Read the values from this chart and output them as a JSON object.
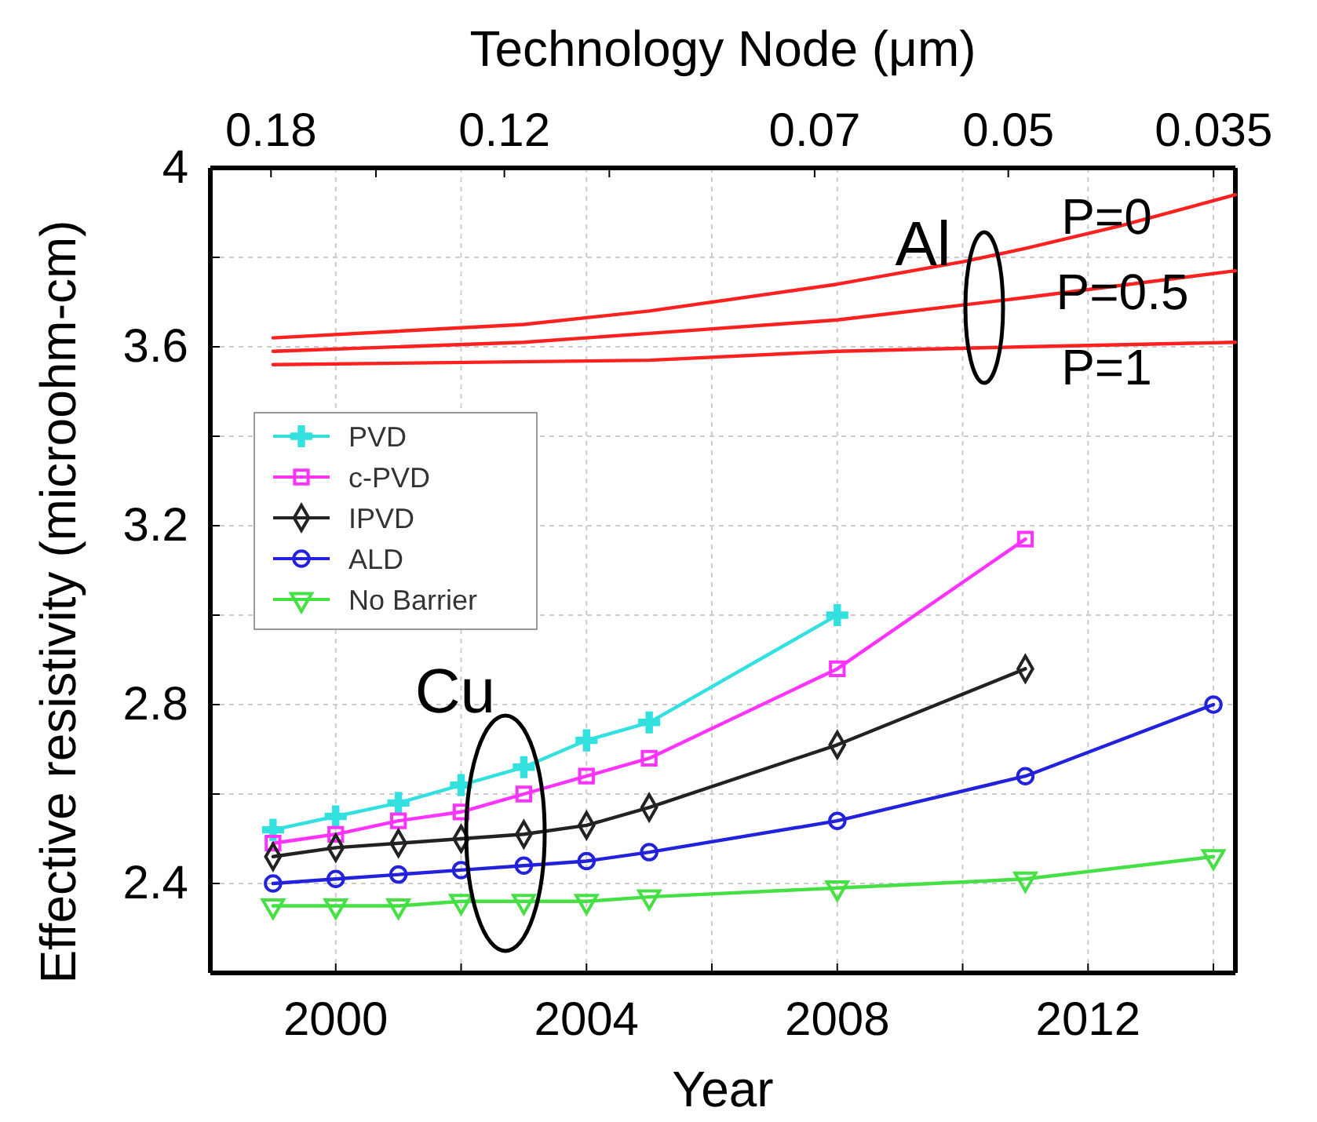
{
  "chart_data": {
    "type": "line",
    "xlabel": "Year",
    "ylabel": "Effective resistivity (microohm-cm)",
    "x2label": "Technology Node (μm)",
    "xlim": [
      1998,
      2014.35
    ],
    "ylim": [
      2.2,
      4.0
    ],
    "xticks": [
      2000,
      {
        "value": 2002,
        "label": null
      },
      2004,
      {
        "value": 2006,
        "label": null
      },
      2008,
      {
        "value": 2010,
        "label": null
      },
      2012,
      {
        "value": 2014,
        "label": null
      }
    ],
    "x2lim": [
      0.2,
      0.0337
    ],
    "log": "x2",
    "x2ticks": [
      0.18,
      {
        "value": 0.15,
        "label": null
      },
      0.12,
      {
        "value": 0.1,
        "label": null
      },
      0.07,
      0.05,
      0.035
    ],
    "yticks": [
      2.4,
      {
        "value": 2.6,
        "label": null
      },
      2.8,
      {
        "value": 3.0,
        "label": null
      },
      3.2,
      {
        "value": 3.4,
        "label": null
      },
      3.6,
      {
        "value": 3.8,
        "label": null
      },
      4
    ],
    "grid": true,
    "legend": "top left",
    "series": [
      {
        "name": "PVD",
        "color": "#33e0e0",
        "marker": "cross",
        "x": [
          1999,
          2000,
          2001,
          2002,
          2003,
          2004,
          2005,
          2008
        ],
        "values": [
          2.52,
          2.55,
          2.58,
          2.62,
          2.66,
          2.72,
          2.76,
          3.0
        ]
      },
      {
        "name": "c-PVD",
        "color": "#ff33ff",
        "marker": "square",
        "x": [
          1999,
          2000,
          2001,
          2002,
          2003,
          2004,
          2005,
          2008,
          2011
        ],
        "values": [
          2.49,
          2.51,
          2.54,
          2.56,
          2.6,
          2.64,
          2.68,
          2.88,
          3.17
        ]
      },
      {
        "name": "IPVD",
        "color": "#222222",
        "marker": "diamond",
        "x": [
          1999,
          2000,
          2001,
          2002,
          2003,
          2004,
          2005,
          2008,
          2011
        ],
        "values": [
          2.46,
          2.48,
          2.49,
          2.5,
          2.51,
          2.53,
          2.57,
          2.71,
          2.88
        ]
      },
      {
        "name": "ALD",
        "color": "#2222dd",
        "marker": "circle",
        "x": [
          1999,
          2000,
          2001,
          2002,
          2003,
          2004,
          2005,
          2008,
          2011,
          2014
        ],
        "values": [
          2.4,
          2.41,
          2.42,
          2.43,
          2.44,
          2.45,
          2.47,
          2.54,
          2.64,
          2.8
        ]
      },
      {
        "name": "No Barrier",
        "color": "#44e044",
        "marker": "triangle",
        "x": [
          1999,
          2000,
          2001,
          2002,
          2003,
          2004,
          2005,
          2008,
          2011,
          2014
        ],
        "values": [
          2.35,
          2.35,
          2.35,
          2.36,
          2.36,
          2.36,
          2.37,
          2.39,
          2.41,
          2.46
        ]
      },
      {
        "color": "#ff2020",
        "marker": "none",
        "x": [
          1999,
          2003,
          2005,
          2008,
          2010,
          2011,
          2012.5,
          2014.35
        ],
        "values": [
          3.62,
          3.65,
          3.68,
          3.74,
          3.79,
          3.82,
          3.87,
          3.94
        ]
      },
      {
        "color": "#ff2020",
        "marker": "none",
        "x": [
          1999,
          2003,
          2005,
          2008,
          2011,
          2014.35
        ],
        "values": [
          3.59,
          3.61,
          3.63,
          3.66,
          3.71,
          3.77
        ]
      },
      {
        "color": "#ff2020",
        "marker": "none",
        "x": [
          1999,
          2005,
          2008,
          2011,
          2014.35
        ],
        "values": [
          3.56,
          3.57,
          3.59,
          3.6,
          3.61
        ]
      }
    ],
    "annotations": [
      "Al",
      "P=0",
      "P=0.5",
      "P=1",
      "Cu"
    ]
  }
}
